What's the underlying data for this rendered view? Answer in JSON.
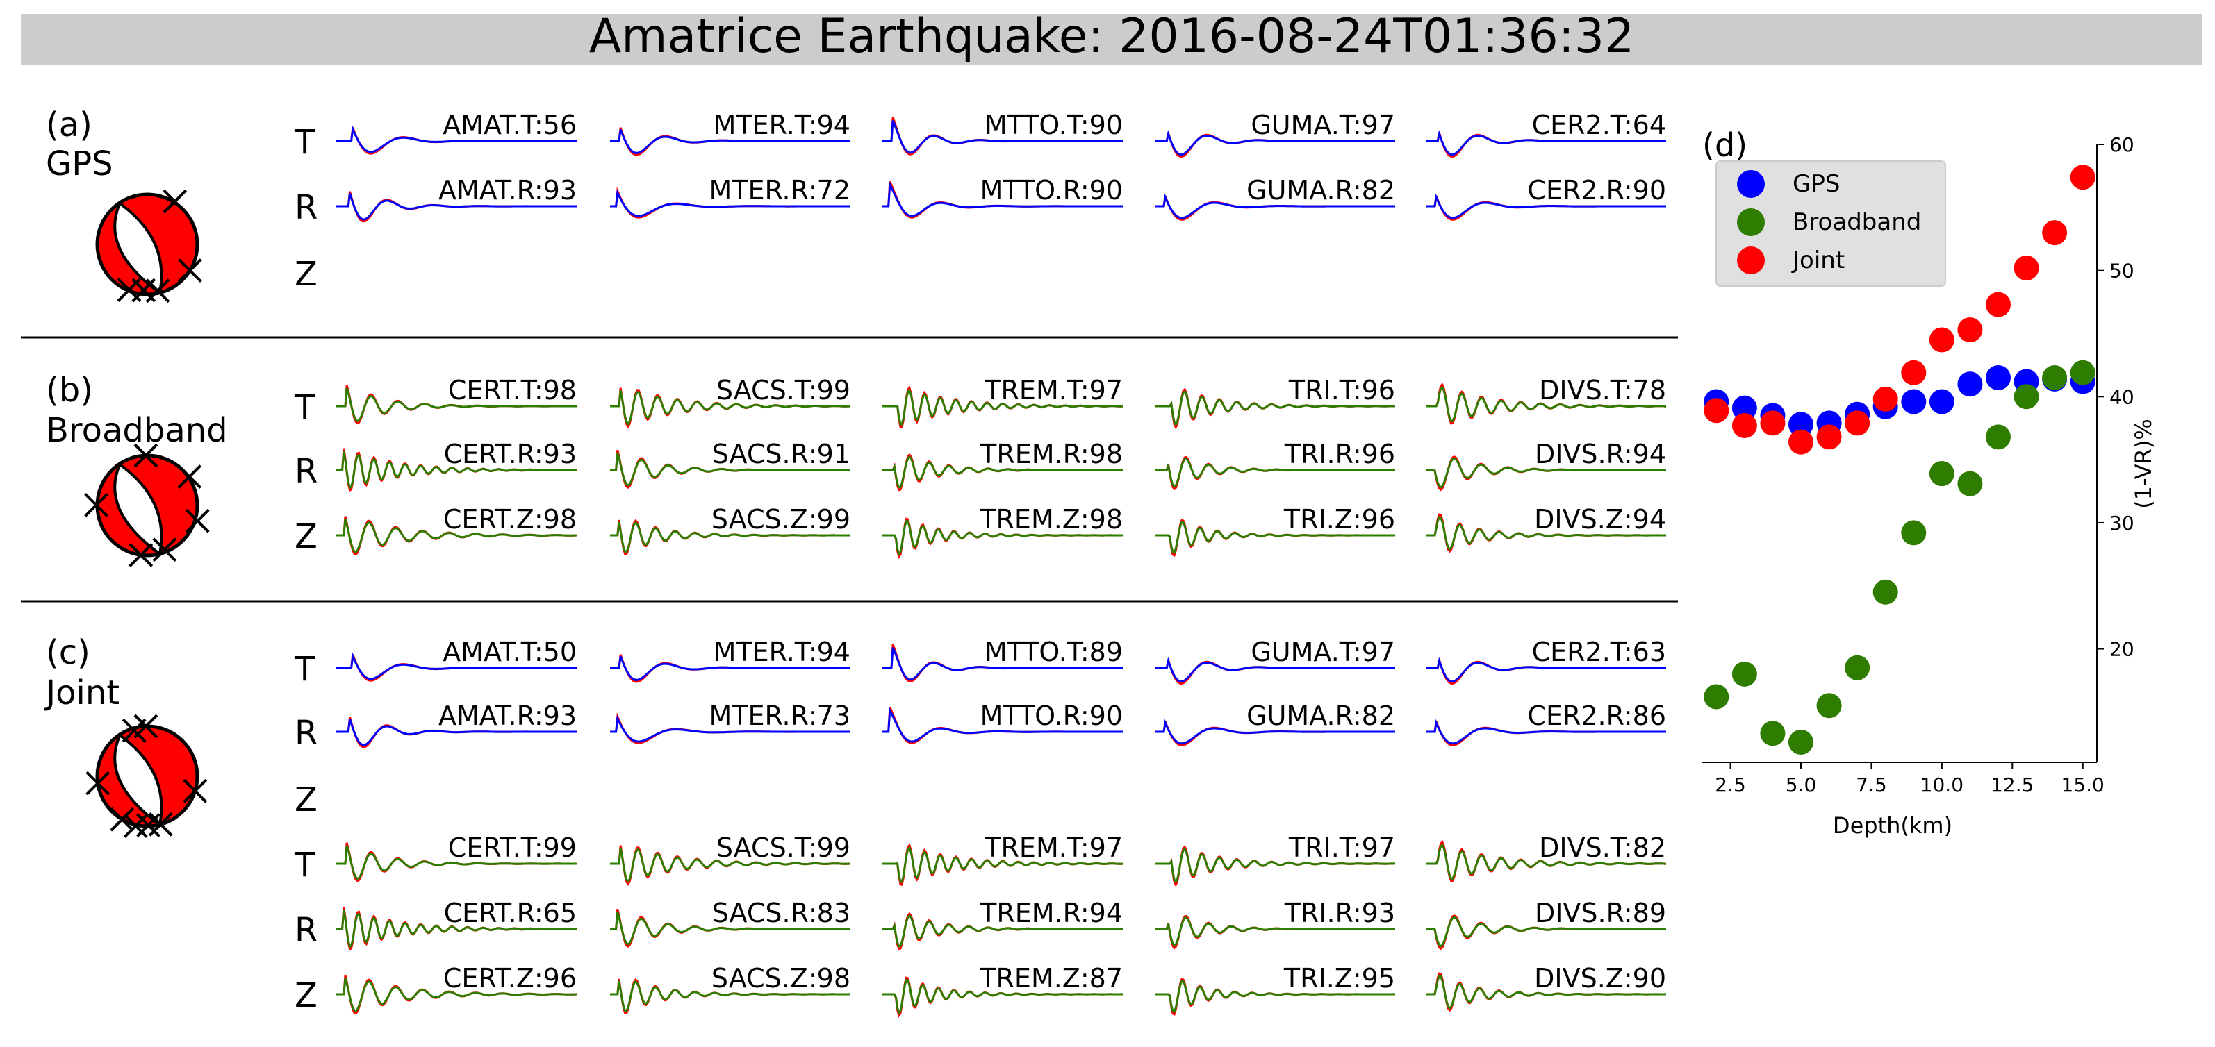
{
  "title": "Amatrice Earthquake: 2016-08-24T01:36:32",
  "colors": {
    "title_bar": "#cccccc",
    "gps_synthetic": "#0000ff",
    "broadband_synthetic": "#2e7d00",
    "observed": "#ff0000",
    "beachball_fill": "#ff0000",
    "separator": "#000000"
  },
  "panels": [
    {
      "letter": "(a)",
      "name": "GPS",
      "component_labels": [
        "T",
        "R",
        "Z"
      ],
      "rows": [
        {
          "component": "T",
          "kind": "gps",
          "stations": [
            "AMAT.T:56",
            "MTER.T:94",
            "MTTO.T:90",
            "GUMA.T:97",
            "CER2.T:64"
          ]
        },
        {
          "component": "R",
          "kind": "gps",
          "stations": [
            "AMAT.R:93",
            "MTER.R:72",
            "MTTO.R:90",
            "GUMA.R:82",
            "CER2.R:90"
          ]
        },
        {
          "component": "Z",
          "kind": "empty",
          "stations": []
        }
      ]
    },
    {
      "letter": "(b)",
      "name": "Broadband",
      "component_labels": [
        "T",
        "R",
        "Z"
      ],
      "rows": [
        {
          "component": "T",
          "kind": "bb",
          "stations": [
            "CERT.T:98",
            "SACS.T:99",
            "TREM.T:97",
            "TRI.T:96",
            "DIVS.T:78"
          ]
        },
        {
          "component": "R",
          "kind": "bb",
          "stations": [
            "CERT.R:93",
            "SACS.R:91",
            "TREM.R:98",
            "TRI.R:96",
            "DIVS.R:94"
          ]
        },
        {
          "component": "Z",
          "kind": "bb",
          "stations": [
            "CERT.Z:98",
            "SACS.Z:99",
            "TREM.Z:98",
            "TRI.Z:96",
            "DIVS.Z:94"
          ]
        }
      ]
    },
    {
      "letter": "(c)",
      "name": "Joint",
      "component_labels": [
        "T",
        "R",
        "Z",
        "T",
        "R",
        "Z"
      ],
      "rows": [
        {
          "component": "T",
          "kind": "gps",
          "stations": [
            "AMAT.T:50",
            "MTER.T:94",
            "MTTO.T:89",
            "GUMA.T:97",
            "CER2.T:63"
          ]
        },
        {
          "component": "R",
          "kind": "gps",
          "stations": [
            "AMAT.R:93",
            "MTER.R:73",
            "MTTO.R:90",
            "GUMA.R:82",
            "CER2.R:86"
          ]
        },
        {
          "component": "Z",
          "kind": "empty",
          "stations": []
        },
        {
          "component": "T",
          "kind": "bb",
          "stations": [
            "CERT.T:99",
            "SACS.T:99",
            "TREM.T:97",
            "TRI.T:97",
            "DIVS.T:82"
          ]
        },
        {
          "component": "R",
          "kind": "bb",
          "stations": [
            "CERT.R:65",
            "SACS.R:83",
            "TREM.R:94",
            "TRI.R:93",
            "DIVS.R:89"
          ]
        },
        {
          "component": "Z",
          "kind": "bb",
          "stations": [
            "CERT.Z:96",
            "SACS.Z:98",
            "TREM.Z:87",
            "TRI.Z:95",
            "DIVS.Z:90"
          ]
        }
      ]
    }
  ],
  "chart_data": {
    "type": "scatter",
    "panel_label": "(d)",
    "xlabel": "Depth(km)",
    "ylabel": "(1-VR)%",
    "xlim": [
      1.5,
      15.5
    ],
    "ylim": [
      11,
      60
    ],
    "xticks": [
      2.5,
      5.0,
      7.5,
      10.0,
      12.5,
      15.0
    ],
    "xtick_labels": [
      "2.5",
      "5.0",
      "7.5",
      "10.0",
      "12.5",
      "15.0"
    ],
    "yticks": [
      20,
      30,
      40,
      50,
      60
    ],
    "ytick_labels": [
      "20",
      "30",
      "40",
      "50",
      "60"
    ],
    "y_axis_side": "right",
    "legend_position": "top-left",
    "x": [
      2,
      3,
      4,
      5,
      6,
      7,
      8,
      9,
      10,
      11,
      12,
      13,
      14,
      15
    ],
    "series": [
      {
        "name": "GPS",
        "color": "#0000ff",
        "values": [
          39.6,
          39.1,
          38.5,
          37.8,
          37.9,
          38.6,
          39.2,
          39.6,
          39.6,
          41.0,
          41.5,
          41.2,
          41.4,
          41.2
        ]
      },
      {
        "name": "Broadband",
        "color": "#2e7d00",
        "values": [
          16.2,
          18.0,
          13.3,
          12.6,
          15.5,
          18.5,
          24.5,
          29.2,
          33.9,
          33.1,
          36.8,
          40.0,
          41.5,
          41.9
        ]
      },
      {
        "name": "Joint",
        "color": "#ff0000",
        "values": [
          38.9,
          37.7,
          37.9,
          36.4,
          36.8,
          37.9,
          39.8,
          41.9,
          44.5,
          45.3,
          47.3,
          50.2,
          53.0,
          57.4
        ]
      }
    ]
  }
}
